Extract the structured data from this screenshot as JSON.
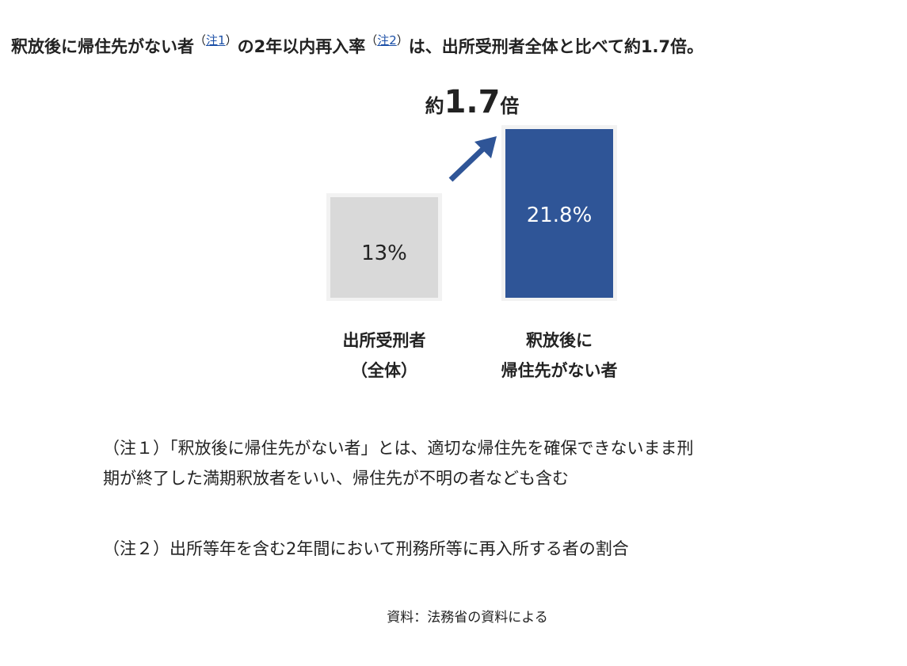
{
  "heading": {
    "part1": "釈放後に帰住先がない者",
    "note1_open": "（",
    "note1_link": "注1",
    "note1_close": "）",
    "part2": "の2年以内再入率",
    "note2_open": "（",
    "note2_link": "注2",
    "note2_close": "）",
    "part3": "は、出所受刑者全体と比べて約1.7倍。"
  },
  "chart_data": {
    "type": "bar",
    "categories": [
      [
        "出所受刑者",
        "（全体）"
      ],
      [
        "釈放後に",
        "帰住先がない者"
      ]
    ],
    "values": [
      13,
      21.8
    ],
    "data_labels": [
      "13%",
      "21.8%"
    ],
    "colors": [
      "#d9d9d9",
      "#2f5597"
    ],
    "label_colors": [
      "#222222",
      "#ffffff"
    ],
    "annotation": {
      "prefix": "約",
      "value": "1.7",
      "suffix": "倍"
    },
    "arrow_color": "#2f5597"
  },
  "notes": [
    {
      "line1": "（注１）「釈放後に帰住先がない者」とは、適切な帰住先を確保できないまま刑",
      "line2": "期が終了した満期釈放者をいい、帰住先が不明の者なども含む"
    },
    {
      "line1": "（注２）出所等年を含む2年間において刑務所等に再入所する者の割合"
    }
  ],
  "source": "資料：法務省の資料による"
}
